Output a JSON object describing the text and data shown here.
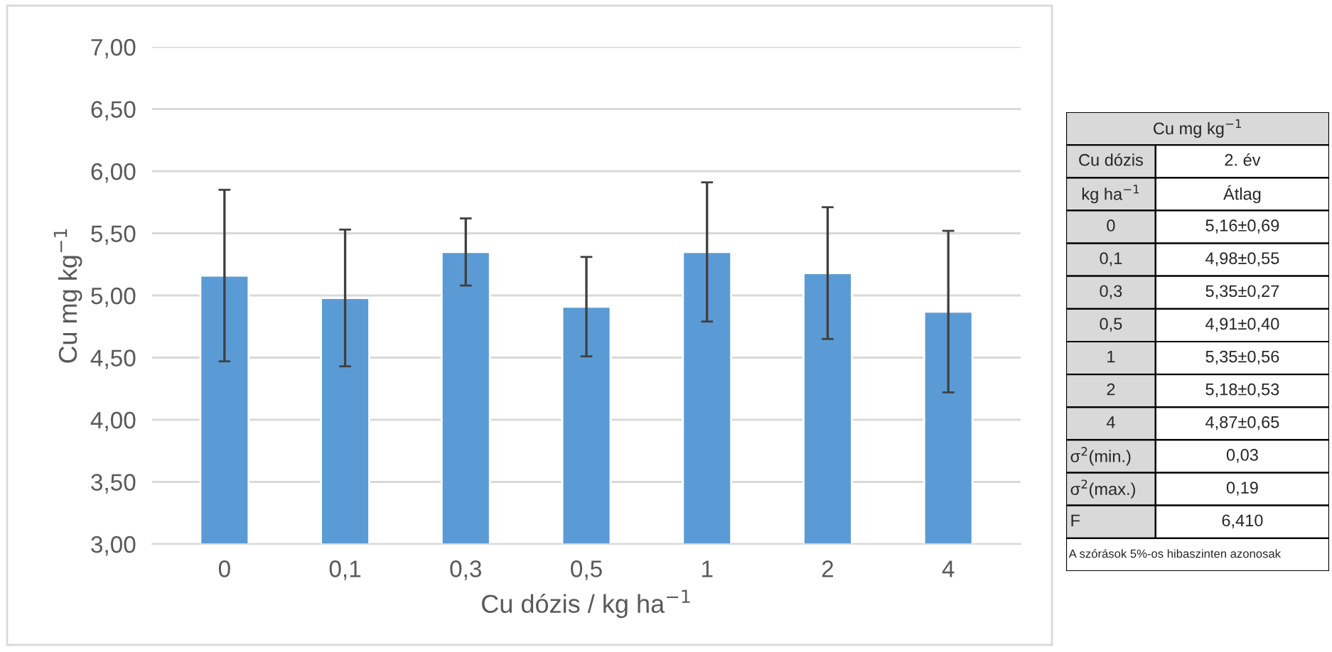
{
  "chart_data": {
    "type": "bar",
    "xlabel": "Cu dózis / kg ha$^{−1}$",
    "ylabel": "Cu mg kg$^{−1}$",
    "categories": [
      "0",
      "0,1",
      "0,3",
      "0,5",
      "1",
      "2",
      "4"
    ],
    "values": [
      5.16,
      4.98,
      5.35,
      4.91,
      5.35,
      5.18,
      4.87
    ],
    "errors": [
      0.69,
      0.55,
      0.27,
      0.4,
      0.56,
      0.53,
      0.65
    ],
    "color": "#5b9bd5",
    "ylim": [
      3,
      7
    ],
    "yticks": [
      {
        "value": 3,
        "label": "3,00"
      },
      {
        "value": 3.5,
        "label": "3,50"
      },
      {
        "value": 4,
        "label": "4,00"
      },
      {
        "value": 4.5,
        "label": "4,50"
      },
      {
        "value": 5,
        "label": "5,00"
      },
      {
        "value": 5.5,
        "label": "5,50"
      },
      {
        "value": 6,
        "label": "6,00"
      },
      {
        "value": 6.5,
        "label": "6,50"
      },
      {
        "value": 7,
        "label": "7,00"
      }
    ],
    "grid": "y",
    "annotations": [
      "Cu mg kg$^{−1}$",
      "Cu dózis",
      "2. év",
      "kg ha$^{−1}$",
      "Átlag",
      "5,16±0,69",
      "4,98±0,55",
      "5,35±0,27",
      "4,91±0,40",
      "5,35±0,56",
      "5,18±0,53",
      "4,87±0,65",
      "σ$^{2}$(min.)",
      "0,03",
      "σ$^{2}$(max.)",
      "0,19",
      "F",
      "6,410",
      "A szórások 5%-os hibaszinten azonosak"
    ]
  }
}
